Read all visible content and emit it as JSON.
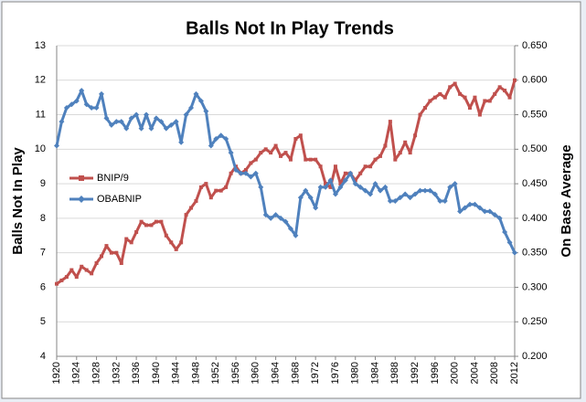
{
  "chart_data": {
    "type": "line",
    "title": "Balls Not In Play Trends",
    "ylabel": "Balls Not In Play",
    "y2label": "On Base Average",
    "categories": [
      "1920",
      null,
      null,
      null,
      "1924",
      null,
      null,
      null,
      "1928",
      null,
      null,
      null,
      "1932",
      null,
      null,
      null,
      "1936",
      null,
      null,
      null,
      "1940",
      null,
      null,
      null,
      "1944",
      null,
      null,
      null,
      "1948",
      null,
      null,
      null,
      "1952",
      null,
      null,
      null,
      "1956",
      null,
      null,
      null,
      "1960",
      null,
      null,
      null,
      "1964",
      null,
      null,
      null,
      "1968",
      null,
      null,
      null,
      "1972",
      null,
      null,
      null,
      "1976",
      null,
      null,
      null,
      "1980",
      null,
      null,
      null,
      "1984",
      null,
      null,
      null,
      "1988",
      null,
      null,
      null,
      "1992",
      null,
      null,
      null,
      "1996",
      null,
      null,
      null,
      "2000",
      null,
      null,
      null,
      "2004",
      null,
      null,
      null,
      "2008",
      null,
      null,
      null,
      "2012"
    ],
    "series": [
      {
        "name": "BNIP/9",
        "color": "#c0504d",
        "marker": "square",
        "values": [
          6.1,
          6.2,
          6.3,
          6.5,
          6.3,
          6.6,
          6.5,
          6.4,
          6.7,
          6.9,
          7.2,
          7.0,
          7.0,
          6.7,
          7.4,
          7.3,
          7.6,
          7.9,
          7.8,
          7.8,
          7.9,
          7.9,
          7.5,
          7.3,
          7.1,
          7.3,
          8.1,
          8.3,
          8.5,
          8.9,
          9.0,
          8.6,
          8.8,
          8.8,
          8.9,
          9.3,
          9.5,
          9.3,
          9.4,
          9.6,
          9.7,
          9.9,
          10.0,
          9.9,
          10.1,
          9.8,
          9.9,
          9.7,
          10.3,
          10.4,
          9.7,
          9.7,
          9.7,
          9.5,
          9.0,
          8.9,
          9.5,
          9.0,
          9.3,
          9.3,
          9.1,
          9.3,
          9.5,
          9.5,
          9.7,
          9.8,
          10.1,
          10.8,
          9.7,
          9.9,
          10.2,
          9.9,
          10.4,
          11.0,
          11.2,
          11.4,
          11.5,
          11.6,
          11.5,
          11.8,
          11.9,
          11.6,
          11.5,
          11.2,
          11.5,
          11.0,
          11.4,
          11.4,
          11.6,
          11.8,
          11.7,
          11.5,
          12.0
        ]
      },
      {
        "name": "OBABNIP",
        "color": "#4f81bd",
        "marker": "diamond",
        "axis": "y2",
        "values": [
          0.505,
          0.54,
          0.56,
          0.565,
          0.57,
          0.585,
          0.565,
          0.56,
          0.56,
          0.58,
          0.545,
          0.535,
          0.54,
          0.54,
          0.53,
          0.545,
          0.55,
          0.53,
          0.55,
          0.53,
          0.545,
          0.54,
          0.53,
          0.535,
          0.54,
          0.51,
          0.55,
          0.56,
          0.58,
          0.57,
          0.555,
          0.505,
          0.515,
          0.52,
          0.515,
          0.495,
          0.47,
          0.465,
          0.465,
          0.46,
          0.465,
          0.445,
          0.405,
          0.4,
          0.405,
          0.4,
          0.395,
          0.385,
          0.375,
          0.43,
          0.44,
          0.43,
          0.415,
          0.445,
          0.445,
          0.455,
          0.435,
          0.445,
          0.455,
          0.465,
          0.45,
          0.445,
          0.44,
          0.435,
          0.45,
          0.44,
          0.445,
          0.425,
          0.425,
          0.43,
          0.435,
          0.43,
          0.435,
          0.44,
          0.44,
          0.44,
          0.435,
          0.425,
          0.425,
          0.445,
          0.45,
          0.41,
          0.415,
          0.42,
          0.42,
          0.415,
          0.41,
          0.41,
          0.405,
          0.4,
          0.38,
          0.365,
          0.35
        ]
      }
    ],
    "ylim": [
      4,
      13
    ],
    "yticks": [
      4,
      5,
      6,
      7,
      8,
      9,
      10,
      11,
      12,
      13
    ],
    "y2lim": [
      0.2,
      0.65
    ],
    "y2ticks": [
      {
        "value": 0.2,
        "label": "0.200"
      },
      {
        "value": 0.25,
        "label": "0.250"
      },
      {
        "value": 0.3,
        "label": "0.300"
      },
      {
        "value": 0.35,
        "label": "0.350"
      },
      {
        "value": 0.4,
        "label": "0.400"
      },
      {
        "value": 0.45,
        "label": "0.450"
      },
      {
        "value": 0.5,
        "label": "0.500"
      },
      {
        "value": 0.55,
        "label": "0.550"
      },
      {
        "value": 0.6,
        "label": "0.600"
      },
      {
        "value": 0.65,
        "label": "0.650"
      }
    ],
    "grid": true,
    "legend": "left"
  }
}
